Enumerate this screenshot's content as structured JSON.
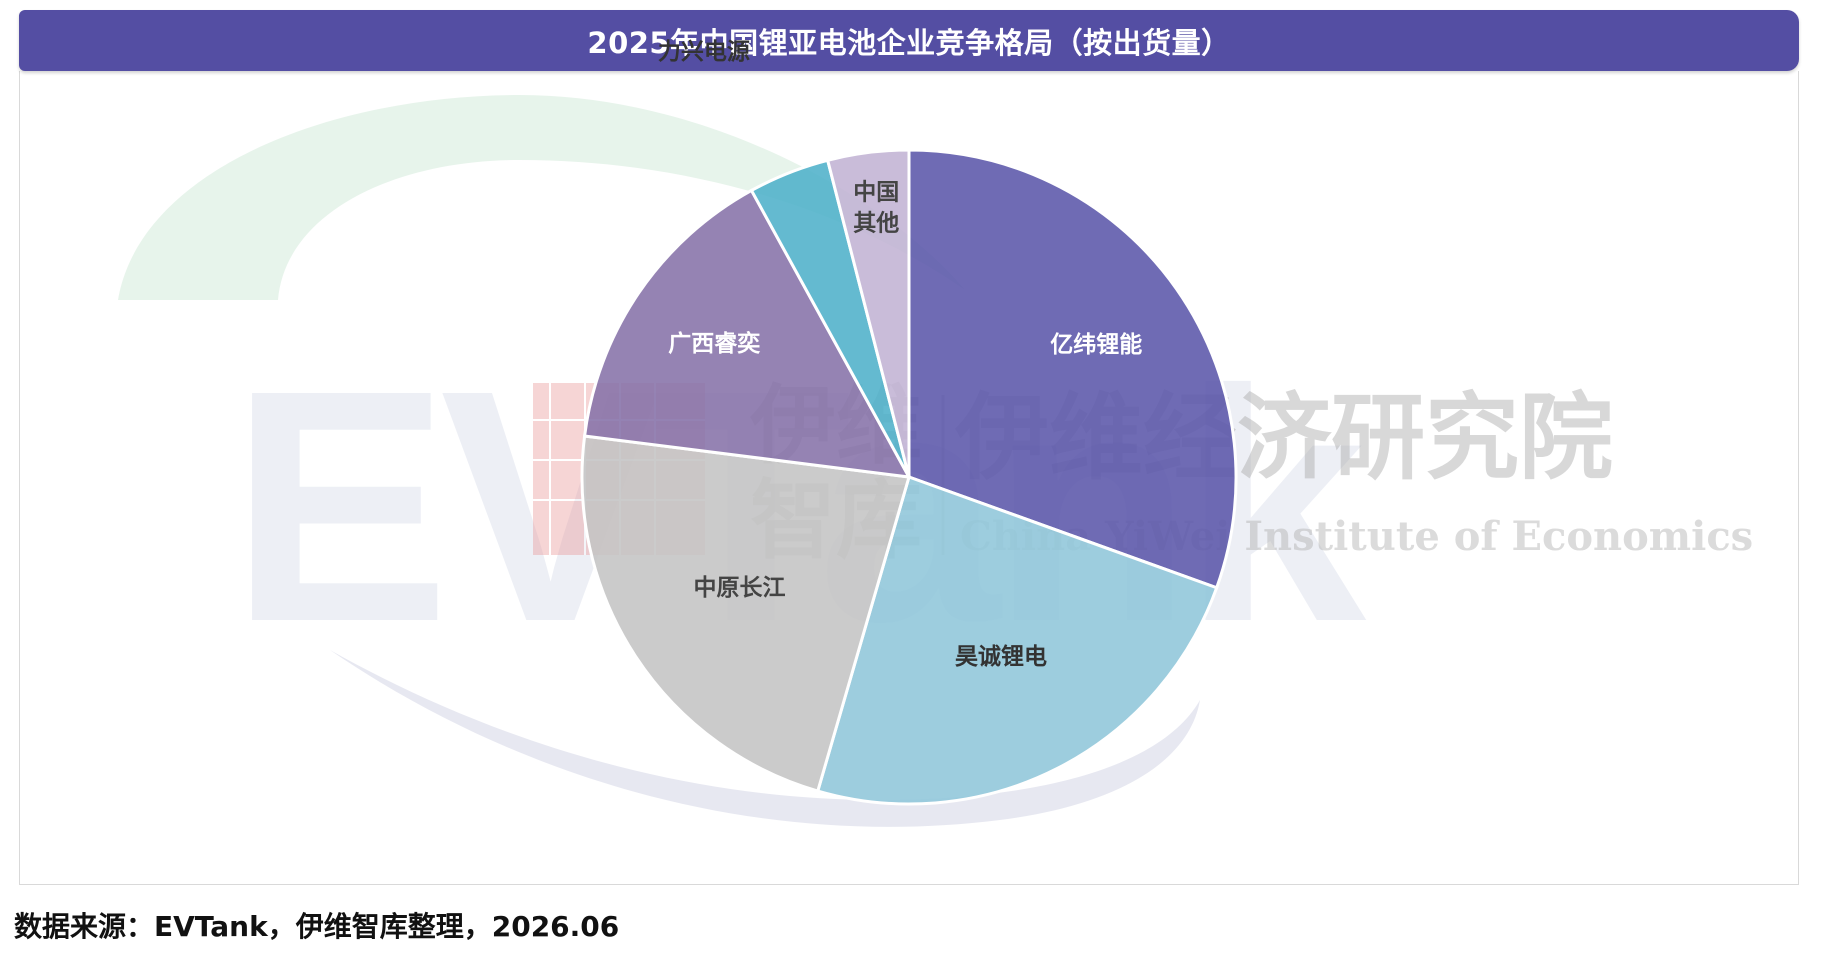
{
  "chart_data": {
    "type": "pie",
    "title": "2025年中国锂亚电池企业竞争格局（按出货量）",
    "start_angle_deg": 0,
    "direction": "clockwise",
    "slices": [
      {
        "label": "亿纬锂能",
        "value": 30.5,
        "color": "#5b56aa",
        "label_color": "#ffffff"
      },
      {
        "label": "昊诚锂电",
        "value": 24.0,
        "color": "#8fc6d9",
        "label_color": "#333333"
      },
      {
        "label": "中原长江",
        "value": 22.5,
        "color": "#c4c4c4",
        "label_color": "#444444"
      },
      {
        "label": "广西睿奕",
        "value": 15.0,
        "color": "#8672a9",
        "label_color": "#ffffff"
      },
      {
        "label": "力兴电源",
        "value": 4.0,
        "color": "#4fb0c9",
        "label_color": "#333333"
      },
      {
        "label": "中国其他",
        "value": 4.0,
        "color": "#c2b3d4",
        "label_color": "#444444"
      }
    ],
    "legend": "none",
    "data_labels": "category-name"
  },
  "watermark": {
    "brand": "EVTank",
    "cn_short_line1": "伊维",
    "cn_short_line2": "智库",
    "cn_full": "伊维经济研究院",
    "en_full": "China YiWei Institute of Economics"
  },
  "footer": {
    "source": "数据来源：EVTank，伊维智库整理，2026.06"
  }
}
